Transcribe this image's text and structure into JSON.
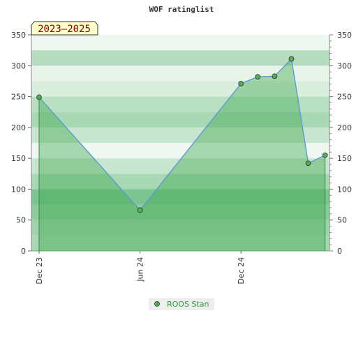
{
  "chart_data": {
    "type": "area",
    "title": "WOF ratinglist",
    "badge": "2023–2025",
    "x_ticks": [
      "Dec 23",
      "Jun 24",
      "Dec 24"
    ],
    "ylim": [
      0,
      350
    ],
    "y_ticks": [
      0,
      50,
      100,
      150,
      200,
      250,
      300,
      350
    ],
    "grid": true,
    "legend_position": "bottom-center",
    "series": [
      {
        "name": "ROOS Stan",
        "points": [
          {
            "x": "2023-12",
            "y": 249
          },
          {
            "x": "2024-06",
            "y": 66
          },
          {
            "x": "2024-12",
            "y": 271
          },
          {
            "x": "2025-01",
            "y": 282
          },
          {
            "x": "2025-02",
            "y": 283
          },
          {
            "x": "2025-03",
            "y": 311
          },
          {
            "x": "2025-04",
            "y": 142
          },
          {
            "x": "2025-05",
            "y": 155
          }
        ]
      }
    ],
    "colors": {
      "line": "#5b9bd5",
      "fill": "#3aa64b",
      "marker": "#4caf50",
      "band_dark": "#7cc490",
      "band_light": "#e8f4ea",
      "badge_bg": "#ffffcc"
    }
  }
}
